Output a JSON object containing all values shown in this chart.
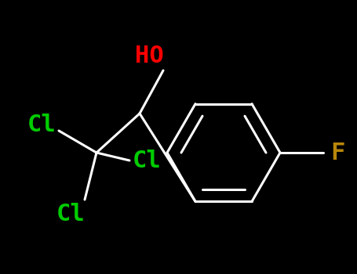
{
  "background_color": "#000000",
  "bond_color": "white",
  "figsize": [
    4.55,
    3.5
  ],
  "dpi": 100,
  "ho_label": "HO",
  "ho_color": "#ff0000",
  "ho_fontsize": 22,
  "f_label": "F",
  "f_color": "#b8860b",
  "f_fontsize": 22,
  "cl_label": "Cl",
  "cl_color": "#00cc00",
  "cl_fontsize": 22,
  "lw": 2.2
}
